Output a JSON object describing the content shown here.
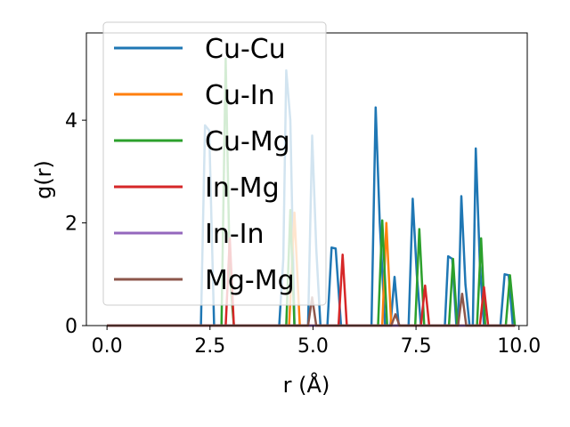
{
  "chart_data": {
    "type": "line",
    "xlabel": "r (Å)",
    "ylabel": "g(r)",
    "xlim": [
      -0.5,
      10.2
    ],
    "ylim": [
      0,
      5.7
    ],
    "xticks": [
      "0.0",
      "2.5",
      "5.0",
      "7.5",
      "10.0"
    ],
    "xtick_values": [
      0,
      2.5,
      5,
      7.5,
      10
    ],
    "yticks": [
      "0",
      "2",
      "4"
    ],
    "ytick_values": [
      0,
      2,
      4
    ],
    "legend_position": "upper-left",
    "series": [
      {
        "name": "Cu-Cu",
        "color": "#1f77b4",
        "points": [
          [
            0,
            0
          ],
          [
            2.28,
            0
          ],
          [
            2.38,
            3.9
          ],
          [
            2.48,
            3.8
          ],
          [
            2.6,
            0
          ],
          [
            4.18,
            0
          ],
          [
            4.28,
            1.3
          ],
          [
            4.35,
            4.97
          ],
          [
            4.45,
            4.0
          ],
          [
            4.55,
            0
          ],
          [
            4.88,
            0
          ],
          [
            4.98,
            3.7
          ],
          [
            5.08,
            1.5
          ],
          [
            5.18,
            0
          ],
          [
            5.35,
            0
          ],
          [
            5.45,
            1.52
          ],
          [
            5.55,
            1.5
          ],
          [
            5.68,
            0
          ],
          [
            6.42,
            0
          ],
          [
            6.52,
            4.25
          ],
          [
            6.62,
            2.0
          ],
          [
            6.75,
            0
          ],
          [
            6.88,
            0
          ],
          [
            6.98,
            0.95
          ],
          [
            7.08,
            0
          ],
          [
            7.32,
            0
          ],
          [
            7.42,
            2.47
          ],
          [
            7.52,
            1.0
          ],
          [
            7.62,
            0
          ],
          [
            8.2,
            0
          ],
          [
            8.28,
            1.35
          ],
          [
            8.38,
            1.3
          ],
          [
            8.48,
            0
          ],
          [
            8.52,
            0
          ],
          [
            8.6,
            2.52
          ],
          [
            8.7,
            0.8
          ],
          [
            8.8,
            0
          ],
          [
            8.88,
            0
          ],
          [
            8.95,
            3.45
          ],
          [
            9.05,
            1.2
          ],
          [
            9.15,
            0
          ],
          [
            9.55,
            0
          ],
          [
            9.65,
            1.0
          ],
          [
            9.75,
            0.98
          ],
          [
            9.85,
            0
          ],
          [
            9.9,
            0
          ]
        ]
      },
      {
        "name": "Cu-In",
        "color": "#ff7f0e",
        "points": [
          [
            0,
            0
          ],
          [
            4.42,
            0
          ],
          [
            4.55,
            2.2
          ],
          [
            4.68,
            0
          ],
          [
            6.68,
            0
          ],
          [
            6.78,
            2.0
          ],
          [
            6.9,
            0
          ],
          [
            9.9,
            0
          ]
        ]
      },
      {
        "name": "Cu-Mg",
        "color": "#2ca02c",
        "points": [
          [
            0,
            0
          ],
          [
            2.78,
            0
          ],
          [
            2.88,
            5.2
          ],
          [
            2.98,
            1.0
          ],
          [
            3.08,
            0
          ],
          [
            4.35,
            0
          ],
          [
            4.45,
            2.25
          ],
          [
            4.55,
            0
          ],
          [
            6.58,
            0
          ],
          [
            6.68,
            2.05
          ],
          [
            6.8,
            0
          ],
          [
            7.48,
            0
          ],
          [
            7.58,
            1.88
          ],
          [
            7.7,
            0
          ],
          [
            8.3,
            0
          ],
          [
            8.4,
            1.3
          ],
          [
            8.5,
            0
          ],
          [
            8.98,
            0
          ],
          [
            9.08,
            1.7
          ],
          [
            9.18,
            0
          ],
          [
            9.68,
            0
          ],
          [
            9.78,
            0.98
          ],
          [
            9.9,
            0
          ]
        ]
      },
      {
        "name": "In-Mg",
        "color": "#d62728",
        "points": [
          [
            0,
            0
          ],
          [
            2.88,
            0
          ],
          [
            2.98,
            1.7
          ],
          [
            3.08,
            0
          ],
          [
            5.62,
            0
          ],
          [
            5.72,
            1.38
          ],
          [
            5.82,
            0
          ],
          [
            7.62,
            0
          ],
          [
            7.72,
            0.78
          ],
          [
            7.82,
            0
          ],
          [
            9.05,
            0
          ],
          [
            9.15,
            0.75
          ],
          [
            9.25,
            0
          ],
          [
            9.9,
            0
          ]
        ]
      },
      {
        "name": "In-In",
        "color": "#9467bd",
        "points": [
          [
            0,
            0
          ],
          [
            9.9,
            0
          ]
        ]
      },
      {
        "name": "Mg-Mg",
        "color": "#8c564b",
        "points": [
          [
            0,
            0
          ],
          [
            4.88,
            0
          ],
          [
            4.98,
            0.55
          ],
          [
            5.08,
            0
          ],
          [
            6.9,
            0
          ],
          [
            7.0,
            0.22
          ],
          [
            7.1,
            0
          ],
          [
            8.52,
            0
          ],
          [
            8.62,
            0.62
          ],
          [
            8.72,
            0
          ],
          [
            9.9,
            0
          ]
        ]
      }
    ]
  }
}
